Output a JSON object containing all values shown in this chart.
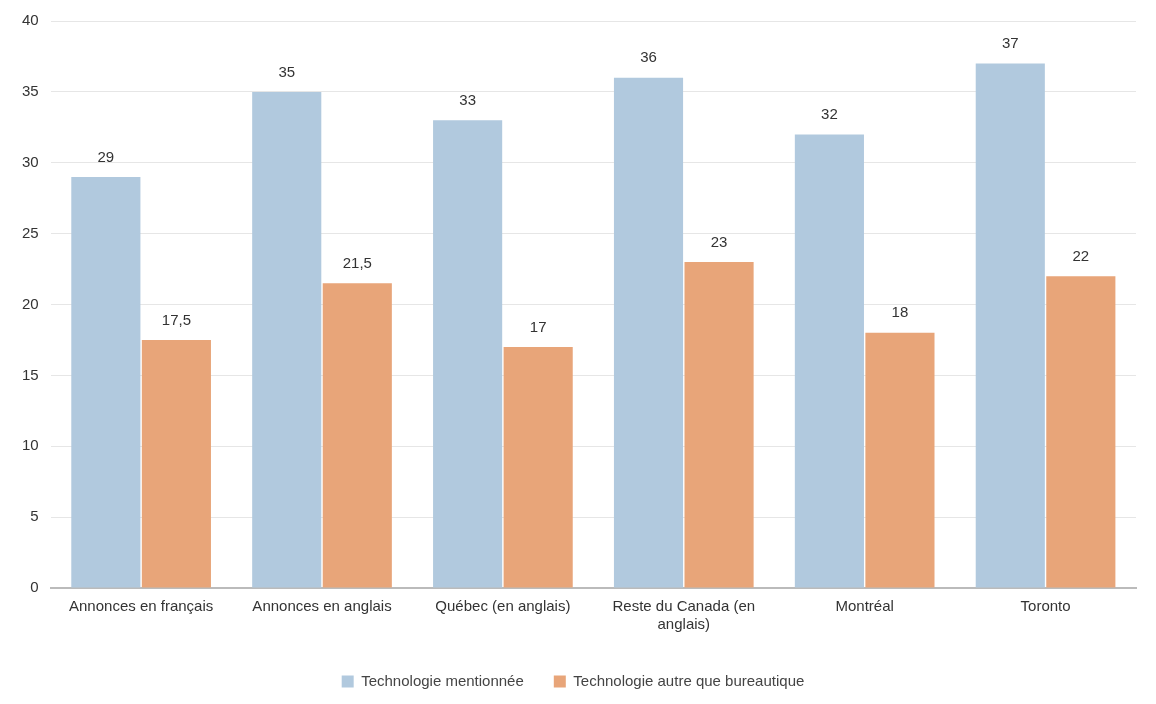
{
  "chart_data": {
    "type": "bar",
    "categories": [
      "Annonces en français",
      "Annonces en anglais",
      "Québec (en anglais)",
      "Reste du Canada (en anglais)",
      "Montréal",
      "Toronto"
    ],
    "series": [
      {
        "name": "Technologie mentionnée",
        "color": "#b1c9de",
        "values": [
          29,
          35,
          33,
          36,
          32,
          37
        ],
        "value_labels": [
          "29",
          "35",
          "33",
          "36",
          "32",
          "37"
        ]
      },
      {
        "name": "Technologie autre que bureautique",
        "color": "#e8a579",
        "values": [
          17.5,
          21.5,
          17,
          23,
          18,
          22
        ],
        "value_labels": [
          "17,5",
          "21,5",
          "17",
          "23",
          "18",
          "22"
        ]
      }
    ],
    "ylim": [
      0,
      40
    ],
    "yticks": [
      0,
      5,
      10,
      15,
      20,
      25,
      30,
      35,
      40
    ],
    "grid": "y",
    "legend": "bottom"
  }
}
